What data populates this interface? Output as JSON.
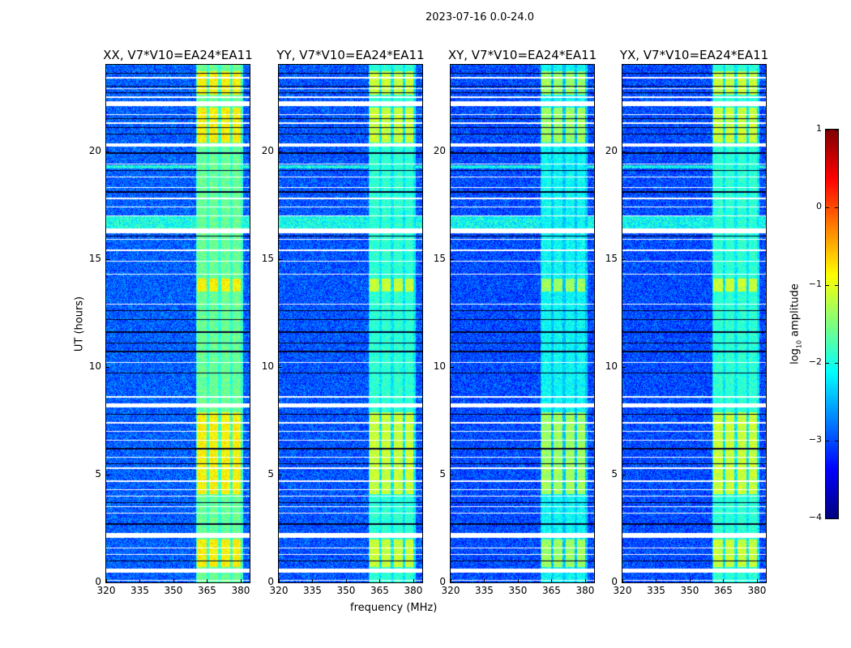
{
  "chart_data": {
    "type": "heatmap",
    "title": "2023-07-16 0.0-24.0",
    "xlabel": "frequency (MHz)",
    "ylabel": "UT (hours)",
    "xlim": [
      320,
      384
    ],
    "ylim": [
      0,
      24
    ],
    "xticks": [
      320,
      335,
      350,
      365,
      380
    ],
    "yticks": [
      0,
      5,
      10,
      15,
      20
    ],
    "colorbar": {
      "label": "log10 amplitude",
      "label_main": "log",
      "label_sub": "10",
      "label_rest": " amplitude",
      "range": [
        -4,
        1
      ],
      "ticks": [
        1,
        0,
        -1,
        -2,
        -3,
        -4
      ],
      "tick_labels": [
        "1",
        "0",
        "−1",
        "−2",
        "−3",
        "−4"
      ],
      "colormap": "jet"
    },
    "panels": [
      {
        "title": "XX, V7*V10=EA24*EA11",
        "background_level": -2.9,
        "band_level": -1.3
      },
      {
        "title": "YY, V7*V10=EA24*EA11",
        "background_level": -2.95,
        "band_level": -1.6
      },
      {
        "title": "XY, V7*V10=EA24*EA11",
        "background_level": -3.0,
        "band_level": -1.8
      },
      {
        "title": "YX, V7*V10=EA24*EA11",
        "background_level": -3.0,
        "band_level": -1.6
      }
    ],
    "rfi_subbands_mhz": [
      [
        360.5,
        364.8
      ],
      [
        366.0,
        370.0
      ],
      [
        371.3,
        375.3
      ],
      [
        376.3,
        380.0
      ]
    ],
    "flagged_gaps_hours": [
      [
        0.45,
        0.65
      ],
      [
        2.05,
        2.3
      ],
      [
        8.1,
        8.3
      ],
      [
        16.2,
        16.4
      ],
      [
        20.2,
        20.35
      ],
      [
        22.1,
        22.3
      ],
      [
        22.45,
        22.55
      ]
    ],
    "flagged_lines_hours": [
      0.1,
      1.3,
      1.6,
      3.2,
      3.5,
      4.0,
      4.3,
      4.7,
      5.3,
      5.8,
      6.6,
      7.0,
      7.4,
      8.6,
      10.2,
      12.9,
      14.3,
      14.9,
      15.4,
      15.9,
      17.0,
      17.4,
      17.8,
      18.3,
      18.8,
      19.4,
      21.3,
      21.7,
      22.9,
      23.4
    ],
    "dropout_lines_hours": [
      1.0,
      2.7,
      3.7,
      5.5,
      6.2,
      7.8,
      9.7,
      10.7,
      11.1,
      11.6,
      12.2,
      12.6,
      16.05,
      18.1,
      19.1,
      19.9,
      20.8,
      21.1,
      21.5,
      22.7,
      23.0,
      23.6
    ],
    "bright_periods_hours": [
      [
        0.7,
        2.0
      ],
      [
        4.1,
        7.9
      ],
      [
        13.5,
        14.1
      ],
      [
        20.4,
        22.0
      ],
      [
        22.6,
        23.7
      ]
    ],
    "bright_background_hours": [
      [
        16.4,
        17.0
      ],
      [
        19.2,
        19.35
      ]
    ]
  }
}
